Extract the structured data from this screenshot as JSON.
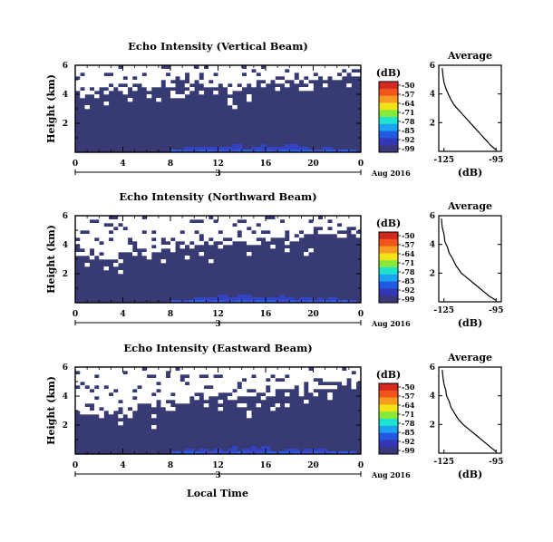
{
  "figure": {
    "xlabel": "Local Time",
    "date_label": "Aug 2016",
    "day_label": "3",
    "colorbar_unit": "(dB)",
    "colorbar_ticks": [
      "-50",
      "-57",
      "-64",
      "-71",
      "-78",
      "-85",
      "-92",
      "-99"
    ],
    "colorbar_colors": [
      "#d22a1e",
      "#f0561c",
      "#f79c20",
      "#f2e318",
      "#86ea3a",
      "#1fe3d0",
      "#1ba3f1",
      "#2159e0",
      "#3336b5",
      "#3a3879"
    ],
    "background_color": "#383a74",
    "profile_title": "Average",
    "profile_xlabel": "(dB)",
    "profile_xticks": [
      -125,
      -95
    ],
    "profile_yticks": [
      6,
      4,
      2
    ],
    "height_ticks": [
      "6",
      "4",
      "2"
    ],
    "time_ticks": [
      "0",
      "4",
      "8",
      "12",
      "16",
      "20",
      "0"
    ]
  },
  "chart_data": [
    {
      "type": "heatmap",
      "title": "Echo Intensity (Vertical Beam)",
      "ylabel": "Height (km)",
      "xlabel": "Local Time",
      "x_range_hours": [
        0,
        24
      ],
      "y_range_km": [
        0,
        6
      ],
      "colorbar_range_db": [
        -99,
        -50
      ],
      "no_data_boundary_km": [
        [
          0,
          4.1
        ],
        [
          2,
          3.9
        ],
        [
          4,
          4.2
        ],
        [
          6,
          4.5
        ],
        [
          8,
          4.6
        ],
        [
          10,
          4.5
        ],
        [
          12,
          4.4
        ],
        [
          14,
          4.2
        ],
        [
          16,
          4.6
        ],
        [
          18,
          4.8
        ],
        [
          20,
          5.0
        ],
        [
          22,
          5.2
        ],
        [
          24,
          5.4
        ]
      ],
      "profile": {
        "title": "Average",
        "xlabel": "(dB)",
        "xlim": [
          -128,
          -92
        ],
        "ylim": [
          0,
          6
        ],
        "x": [
          -95,
          -98,
          -101,
          -104,
          -107,
          -110,
          -113,
          -116,
          -119,
          -121,
          -122.5,
          -124,
          -125,
          -125.5,
          -126
        ],
        "y": [
          0.1,
          0.4,
          0.8,
          1.2,
          1.6,
          2.0,
          2.4,
          2.8,
          3.2,
          3.6,
          4.0,
          4.4,
          4.8,
          5.2,
          5.8
        ]
      }
    },
    {
      "type": "heatmap",
      "title": "Echo Intensity (Northward Beam)",
      "ylabel": "Height (km)",
      "xlabel": "Local Time",
      "x_range_hours": [
        0,
        24
      ],
      "y_range_km": [
        0,
        6
      ],
      "colorbar_range_db": [
        -99,
        -50
      ],
      "no_data_boundary_km": [
        [
          0,
          3.3
        ],
        [
          2,
          3.0
        ],
        [
          4,
          3.1
        ],
        [
          6,
          3.4
        ],
        [
          8,
          3.8
        ],
        [
          10,
          4.0
        ],
        [
          12,
          4.1
        ],
        [
          14,
          3.9
        ],
        [
          16,
          4.0
        ],
        [
          18,
          4.3
        ],
        [
          20,
          4.6
        ],
        [
          22,
          4.8
        ],
        [
          24,
          4.9
        ]
      ],
      "profile": {
        "title": "Average",
        "xlabel": "(dB)",
        "xlim": [
          -128,
          -92
        ],
        "ylim": [
          0,
          6
        ],
        "x": [
          -95,
          -99,
          -103,
          -107,
          -111,
          -115,
          -118,
          -120,
          -122,
          -123,
          -124.5,
          -125,
          -126,
          -126.5
        ],
        "y": [
          0.1,
          0.4,
          0.8,
          1.2,
          1.6,
          2.0,
          2.5,
          3.0,
          3.4,
          3.8,
          4.2,
          4.7,
          5.2,
          5.8
        ]
      }
    },
    {
      "type": "heatmap",
      "title": "Echo Intensity (Eastward Beam)",
      "ylabel": "Height (km)",
      "xlabel": "Local Time",
      "x_range_hours": [
        0,
        24
      ],
      "y_range_km": [
        0,
        6
      ],
      "colorbar_range_db": [
        -99,
        -50
      ],
      "no_data_boundary_km": [
        [
          0,
          3.0
        ],
        [
          2,
          2.6
        ],
        [
          4,
          2.7
        ],
        [
          6,
          3.0
        ],
        [
          8,
          3.4
        ],
        [
          10,
          3.7
        ],
        [
          12,
          3.9
        ],
        [
          14,
          3.8
        ],
        [
          16,
          3.9
        ],
        [
          18,
          4.1
        ],
        [
          20,
          4.4
        ],
        [
          22,
          4.6
        ],
        [
          24,
          4.8
        ]
      ],
      "profile": {
        "title": "Average",
        "xlabel": "(dB)",
        "xlim": [
          -128,
          -92
        ],
        "ylim": [
          0,
          6
        ],
        "x": [
          -95,
          -98,
          -102,
          -106,
          -110,
          -114,
          -117,
          -119,
          -121,
          -122,
          -123.5,
          -124,
          -125,
          -125.5,
          -126
        ],
        "y": [
          0.1,
          0.4,
          0.8,
          1.2,
          1.6,
          2.0,
          2.4,
          2.8,
          3.2,
          3.6,
          4.0,
          4.4,
          4.8,
          5.2,
          5.8
        ]
      }
    }
  ]
}
